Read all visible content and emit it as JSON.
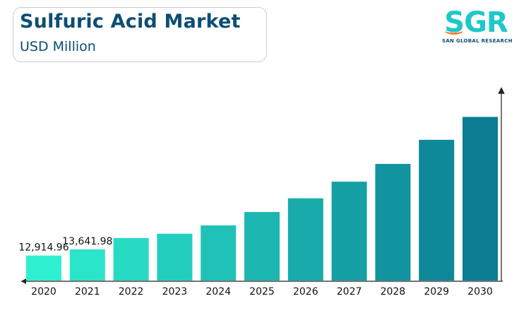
{
  "header": {
    "title": "Sulfuric Acid Market",
    "subtitle": "USD Million"
  },
  "logo": {
    "text": "SGR",
    "tagline": "SAN GLOBAL RESEARCH"
  },
  "colors": {
    "title": "#0c4e73",
    "bar_start": "#2ff0d0",
    "bar_end": "#0a7d93",
    "logo_accent": "#f2813a"
  },
  "chart_data": {
    "type": "bar",
    "title": "Sulfuric Acid Market",
    "ylabel": "USD Million",
    "categories": [
      "2020",
      "2021",
      "2022",
      "2023",
      "2024",
      "2025",
      "2026",
      "2027",
      "2028",
      "2029",
      "2030"
    ],
    "values": [
      12914.96,
      13641.98,
      14960,
      15460,
      16430,
      17990,
      19590,
      21530,
      23600,
      26410,
      29080
    ],
    "data_labels": [
      "12,914.96",
      "13,641.98",
      "",
      "",
      "",
      "",
      "",
      "",
      "",
      "",
      ""
    ],
    "ylim": [
      10000,
      32000
    ],
    "grid": false,
    "legend": "none"
  }
}
